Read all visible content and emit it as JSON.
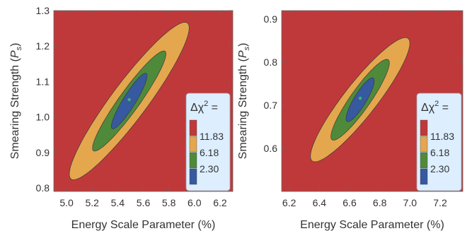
{
  "colors": {
    "outer": "#c0393a",
    "band_3sigma": "#e4a74e",
    "band_2sigma": "#4f8a3b",
    "band_1sigma": "#37599f",
    "best_fit": "#33ee55",
    "legend_bg": "#ddeeff"
  },
  "chart_data": [
    {
      "type": "contour",
      "xlabel": "Energy Scale Parameter (%)",
      "ylabel_main": "Smearing Strength (",
      "ylabel_symbol": "P",
      "ylabel_sub": "s",
      "ylabel_close": ")",
      "xlim": [
        4.9,
        6.3
      ],
      "ylim": [
        0.79,
        1.3
      ],
      "xticks": [
        "5.0",
        "5.2",
        "5.4",
        "5.6",
        "5.8",
        "6.0",
        "6.2"
      ],
      "yticks": [
        "0.8",
        "0.9",
        "1.0",
        "1.1",
        "1.2",
        "1.3"
      ],
      "best_fit": [
        5.49,
        1.045
      ],
      "contours": [
        {
          "level": "11.83",
          "corr_angle_deg": 53,
          "a": 0.54,
          "b": 0.1
        },
        {
          "level": "6.18",
          "corr_angle_deg": 54,
          "a": 0.34,
          "b": 0.057
        },
        {
          "level": "2.30",
          "corr_angle_deg": 58,
          "a": 0.18,
          "b": 0.035
        }
      ],
      "legend": {
        "title_prefix": "Δχ",
        "title_power": "2",
        "title_suffix": " =",
        "entries": [
          "11.83",
          "6.18",
          "2.30"
        ]
      }
    },
    {
      "type": "contour",
      "xlabel": "Energy Scale Parameter (%)",
      "ylabel_main": "Smearing Strength (",
      "ylabel_symbol": "P",
      "ylabel_sub": "s",
      "ylabel_close": ")",
      "xlim": [
        6.15,
        7.35
      ],
      "ylim": [
        0.5,
        0.92
      ],
      "xticks": [
        "6.2",
        "6.4",
        "6.6",
        "6.8",
        "7.0",
        "7.2"
      ],
      "yticks": [
        "0.6",
        "0.7",
        "0.8",
        "0.9"
      ],
      "best_fit": [
        6.67,
        0.713
      ],
      "contours": [
        {
          "level": "11.83",
          "corr_angle_deg": 52,
          "a": 0.43,
          "b": 0.091
        },
        {
          "level": "6.18",
          "corr_angle_deg": 55,
          "a": 0.27,
          "b": 0.055
        },
        {
          "level": "2.30",
          "corr_angle_deg": 59,
          "a": 0.14,
          "b": 0.034
        }
      ],
      "legend": {
        "title_prefix": "Δχ",
        "title_power": "2",
        "title_suffix": " =",
        "entries": [
          "11.83",
          "6.18",
          "2.30"
        ]
      }
    }
  ]
}
